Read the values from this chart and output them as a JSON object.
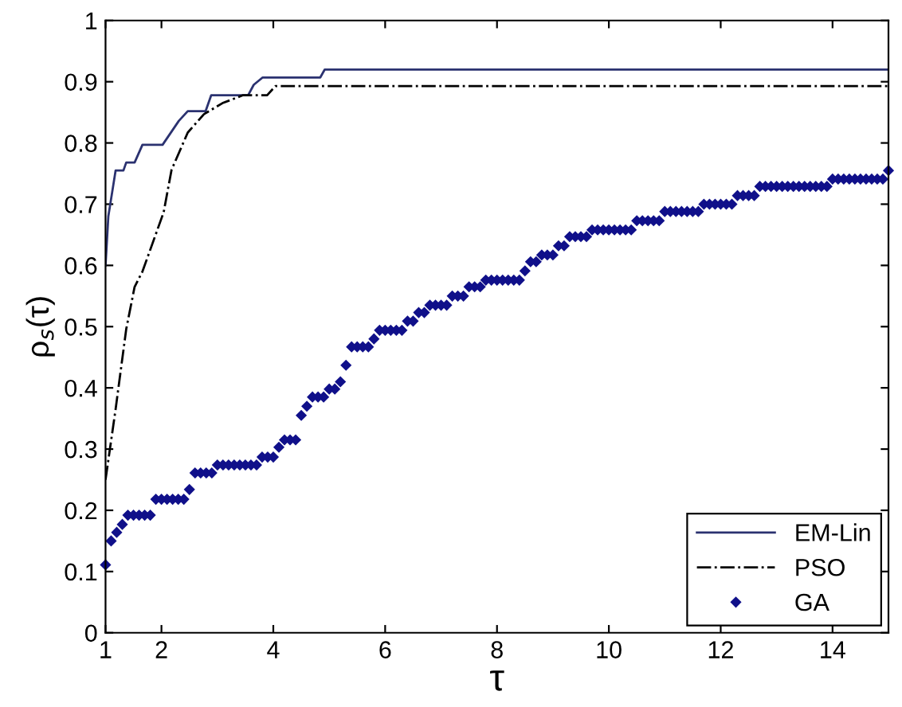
{
  "chart_data": {
    "type": "line",
    "xlabel": "τ",
    "ylabel": "ρ$_{s}$(τ)",
    "xlim": [
      1,
      15
    ],
    "xticks": [
      1,
      2,
      4,
      6,
      8,
      10,
      12,
      14
    ],
    "ylim": [
      0,
      1
    ],
    "yticks": [
      0,
      0.1,
      0.2,
      0.3,
      0.4,
      0.5,
      0.6,
      0.7,
      0.8,
      0.9,
      1
    ],
    "grid": false,
    "legend": "bottom right",
    "series": [
      {
        "name": "EM-Lin",
        "color": "#2b3270",
        "line_style": "solid",
        "marker": "none",
        "x": [
          1.0,
          1.05,
          1.18,
          1.32,
          1.37,
          1.52,
          1.66,
          2.02,
          2.31,
          2.47,
          2.79,
          2.89,
          3.55,
          3.65,
          3.81,
          4.84,
          4.92,
          15
        ],
        "values": [
          0.6,
          0.68,
          0.755,
          0.755,
          0.768,
          0.768,
          0.797,
          0.797,
          0.836,
          0.852,
          0.852,
          0.878,
          0.878,
          0.895,
          0.907,
          0.907,
          0.92,
          0.92
        ]
      },
      {
        "name": "PSO",
        "color": "#000000",
        "line_style": "dashdot",
        "marker": "none",
        "x": [
          1.0,
          1.18,
          1.37,
          1.52,
          1.66,
          2.04,
          2.18,
          2.47,
          2.76,
          3.09,
          3.46,
          3.89,
          4.04,
          15
        ],
        "values": [
          0.25,
          0.365,
          0.496,
          0.565,
          0.59,
          0.687,
          0.756,
          0.817,
          0.847,
          0.865,
          0.878,
          0.878,
          0.893,
          0.893
        ]
      },
      {
        "name": "GA",
        "type": "scatter",
        "color": "#10108a",
        "marker": "diamond",
        "x": [
          1.0,
          1.1,
          1.2,
          1.3,
          1.4,
          1.5,
          1.6,
          1.7,
          1.8,
          1.9,
          2.0,
          2.1,
          2.2,
          2.3,
          2.4,
          2.5,
          2.6,
          2.7,
          2.8,
          2.9,
          3.0,
          3.1,
          3.2,
          3.3,
          3.4,
          3.5,
          3.6,
          3.7,
          3.8,
          3.9,
          4.0,
          4.1,
          4.2,
          4.3,
          4.4,
          4.5,
          4.6,
          4.7,
          4.8,
          4.9,
          5.0,
          5.1,
          5.2,
          5.3,
          5.4,
          5.5,
          5.6,
          5.7,
          5.8,
          5.9,
          6.0,
          6.1,
          6.2,
          6.3,
          6.4,
          6.5,
          6.6,
          6.7,
          6.8,
          6.9,
          7.0,
          7.1,
          7.2,
          7.3,
          7.4,
          7.5,
          7.6,
          7.7,
          7.8,
          7.9,
          8.0,
          8.1,
          8.2,
          8.3,
          8.4,
          8.5,
          8.6,
          8.7,
          8.8,
          8.9,
          9.0,
          9.1,
          9.2,
          9.3,
          9.4,
          9.5,
          9.6,
          9.7,
          9.8,
          9.9,
          10.0,
          10.1,
          10.2,
          10.3,
          10.4,
          10.5,
          10.6,
          10.7,
          10.8,
          10.9,
          11.0,
          11.1,
          11.2,
          11.3,
          11.4,
          11.5,
          11.6,
          11.7,
          11.8,
          11.9,
          12.0,
          12.1,
          12.2,
          12.3,
          12.4,
          12.5,
          12.6,
          12.7,
          12.8,
          12.9,
          13.0,
          13.1,
          13.2,
          13.3,
          13.4,
          13.5,
          13.6,
          13.7,
          13.8,
          13.9,
          14.0,
          14.1,
          14.2,
          14.3,
          14.4,
          14.5,
          14.6,
          14.7,
          14.8,
          14.9,
          15.0
        ],
        "values": [
          0.111,
          0.15,
          0.164,
          0.177,
          0.192,
          0.192,
          0.192,
          0.192,
          0.192,
          0.218,
          0.218,
          0.218,
          0.218,
          0.218,
          0.218,
          0.234,
          0.261,
          0.261,
          0.261,
          0.261,
          0.274,
          0.274,
          0.274,
          0.274,
          0.274,
          0.274,
          0.274,
          0.274,
          0.287,
          0.287,
          0.287,
          0.303,
          0.315,
          0.315,
          0.315,
          0.355,
          0.37,
          0.385,
          0.385,
          0.385,
          0.398,
          0.398,
          0.41,
          0.437,
          0.467,
          0.467,
          0.467,
          0.467,
          0.48,
          0.494,
          0.494,
          0.494,
          0.494,
          0.494,
          0.509,
          0.509,
          0.523,
          0.523,
          0.535,
          0.535,
          0.535,
          0.535,
          0.55,
          0.55,
          0.55,
          0.565,
          0.565,
          0.565,
          0.576,
          0.576,
          0.576,
          0.576,
          0.576,
          0.576,
          0.576,
          0.591,
          0.606,
          0.606,
          0.617,
          0.617,
          0.617,
          0.632,
          0.632,
          0.647,
          0.647,
          0.647,
          0.647,
          0.658,
          0.658,
          0.658,
          0.658,
          0.658,
          0.658,
          0.658,
          0.658,
          0.673,
          0.673,
          0.673,
          0.673,
          0.673,
          0.688,
          0.688,
          0.688,
          0.688,
          0.688,
          0.688,
          0.688,
          0.7,
          0.7,
          0.7,
          0.7,
          0.7,
          0.7,
          0.714,
          0.714,
          0.714,
          0.714,
          0.729,
          0.729,
          0.729,
          0.729,
          0.729,
          0.729,
          0.729,
          0.729,
          0.729,
          0.729,
          0.729,
          0.729,
          0.729,
          0.741,
          0.741,
          0.741,
          0.741,
          0.741,
          0.741,
          0.741,
          0.741,
          0.741,
          0.741,
          0.755
        ]
      }
    ]
  }
}
